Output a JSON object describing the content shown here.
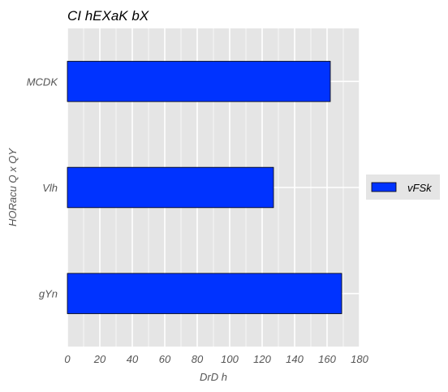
{
  "chart_data": {
    "type": "bar",
    "orientation": "horizontal",
    "title": "CI hEXaK bX",
    "xlabel": "DrD h",
    "ylabel": "HORacu Q x QY",
    "categories": [
      "MCDK",
      "Vlh",
      "gYn"
    ],
    "series": [
      {
        "name": "vFSk",
        "values": [
          162,
          127,
          169
        ],
        "color": "#0033ff"
      }
    ],
    "xlim": [
      0,
      180
    ],
    "xticks": [
      0,
      20,
      40,
      60,
      80,
      100,
      120,
      140,
      160,
      180
    ],
    "grid": true,
    "legend_position": "right",
    "colors": {
      "panel": "#e5e5e5",
      "grid": "#ffffff",
      "bar_edge": "#000000"
    }
  }
}
